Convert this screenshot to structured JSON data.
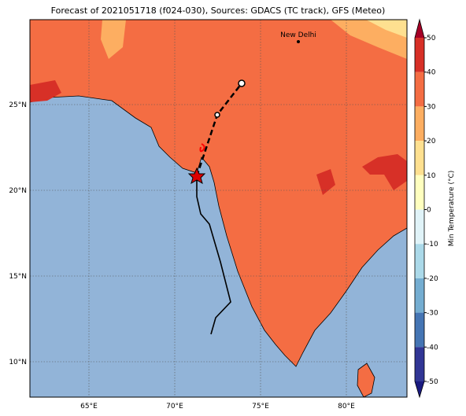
{
  "map": {
    "title": "Forecast of 2021051718 (f024-030), Sources: GDACS (TC track), GFS (Meteo)",
    "lon_labels": [
      "65°E",
      "70°E",
      "75°E",
      "80°E"
    ],
    "lat_labels": [
      "25°N",
      "20°N",
      "15°N",
      "10°N"
    ],
    "city": "New Delhi",
    "colorbar": {
      "label": "Min Temperature (°C)",
      "ticks": [
        50,
        40,
        30,
        20,
        10,
        0,
        -10,
        -20,
        -30,
        -40,
        -50
      ],
      "colors": [
        "#a50026",
        "#d73027",
        "#f46d43",
        "#fdae61",
        "#fee090",
        "#ffffbf",
        "#e0f3f8",
        "#abd9e9",
        "#74add1",
        "#4575b4",
        "#313695",
        "#1a1a80"
      ]
    }
  }
}
